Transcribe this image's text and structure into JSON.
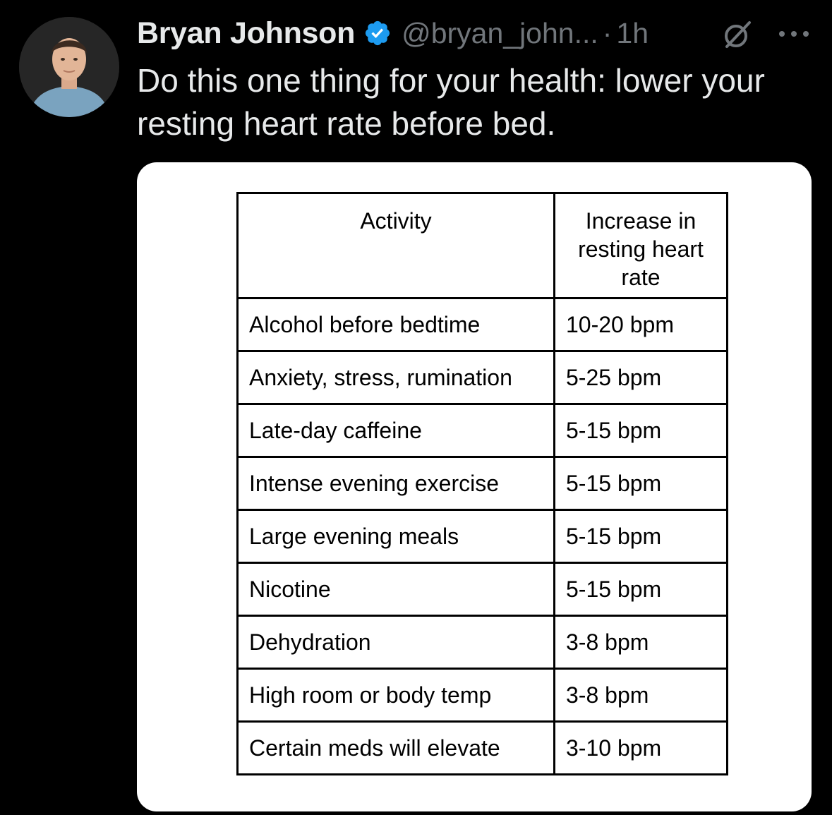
{
  "tweet": {
    "author": {
      "display_name": "Bryan Johnson",
      "handle": "@bryan_john...",
      "verified": true,
      "avatar_icon": "avatar-photo"
    },
    "separator": "·",
    "time": "1h",
    "text": "Do this one thing for your health: lower your resting heart rate before bed.",
    "icons": {
      "grok": "grok-icon",
      "more": "more-icon",
      "verified": "verified-badge-icon"
    },
    "colors": {
      "background": "#000000",
      "text": "#e7e9ea",
      "muted": "#71767b",
      "verified_blue": "#1d9bf0"
    }
  },
  "table": {
    "headers": [
      "Activity",
      "Increase in resting heart rate"
    ],
    "rows": [
      {
        "activity": "Alcohol before bedtime",
        "increase": "10-20 bpm"
      },
      {
        "activity": "Anxiety, stress, rumination",
        "increase": "5-25 bpm"
      },
      {
        "activity": "Late-day caffeine",
        "increase": "5-15 bpm"
      },
      {
        "activity": "Intense evening exercise",
        "increase": "5-15 bpm"
      },
      {
        "activity": "Large evening meals",
        "increase": "5-15 bpm"
      },
      {
        "activity": "Nicotine",
        "increase": "5-15 bpm"
      },
      {
        "activity": "Dehydration",
        "increase": "3-8 bpm"
      },
      {
        "activity": "High room or body temp",
        "increase": "3-8 bpm"
      },
      {
        "activity": "Certain meds will elevate",
        "increase": "3-10 bpm"
      }
    ]
  }
}
